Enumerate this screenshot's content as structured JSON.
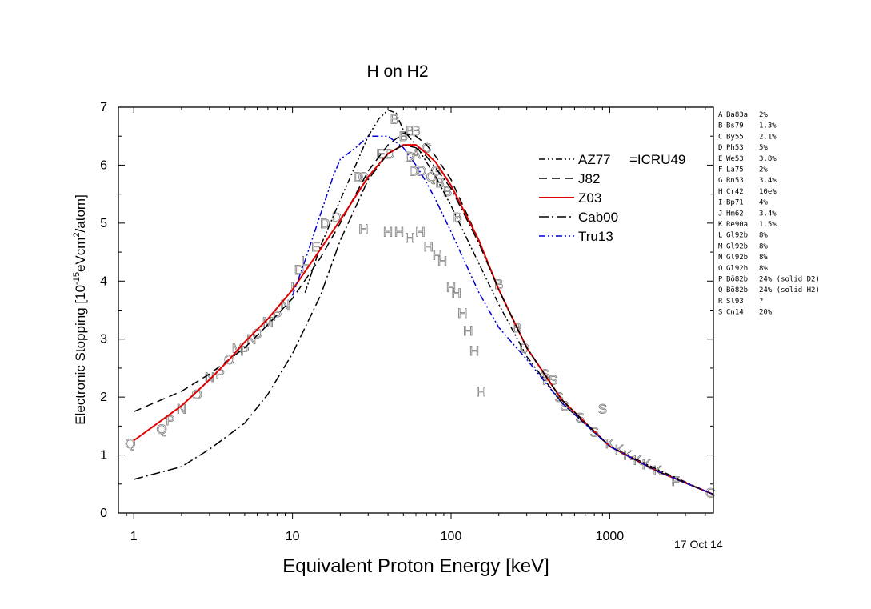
{
  "chart_data": {
    "type": "line",
    "title": "H on H2",
    "xlabel": "Equivalent Proton Energy [keV]",
    "ylabel_main": "Electronic Stopping [10",
    "ylabel_exp1": "-15",
    "ylabel_mid": "eVcm",
    "ylabel_exp2": "2",
    "ylabel_end": "/atom]",
    "xscale": "log",
    "xlim": [
      0.8,
      4500
    ],
    "ylim": [
      0,
      7
    ],
    "x_ticks": [
      1,
      10,
      100,
      1000
    ],
    "x_tick_labels": [
      "1",
      "10",
      "100",
      "1000"
    ],
    "y_ticks": [
      0,
      1,
      2,
      3,
      4,
      5,
      6,
      7
    ],
    "y_tick_labels": [
      "0",
      "1",
      "2",
      "3",
      "4",
      "5",
      "6",
      "7"
    ],
    "date_label": "17 Oct 14",
    "legend_note": "=ICRU49",
    "legend_placement": "top-right inside",
    "series": [
      {
        "name": "AZ77",
        "color": "#000000",
        "dash": "8,3,2,3,2,3",
        "x": [
          12,
          15,
          20,
          25,
          30,
          35,
          40,
          45,
          50,
          60,
          70,
          80,
          100,
          150,
          200,
          300,
          500,
          1000,
          2000,
          4500
        ],
        "y": [
          3.8,
          4.6,
          5.4,
          6.0,
          6.5,
          6.8,
          6.95,
          6.9,
          6.6,
          6.35,
          6.05,
          5.8,
          5.3,
          4.3,
          3.6,
          2.7,
          1.9,
          1.15,
          0.75,
          0.32
        ]
      },
      {
        "name": "J82",
        "color": "#000000",
        "dash": "10,6",
        "x": [
          1,
          2,
          3,
          5,
          7,
          10,
          15,
          20,
          30,
          40,
          50,
          60,
          70,
          80,
          100,
          150,
          200,
          300,
          500,
          1000,
          2000,
          4500
        ],
        "y": [
          1.75,
          2.1,
          2.4,
          2.85,
          3.25,
          3.7,
          4.4,
          5.0,
          5.9,
          6.35,
          6.55,
          6.5,
          6.35,
          6.15,
          5.75,
          4.7,
          3.85,
          2.85,
          1.95,
          1.15,
          0.72,
          0.32
        ]
      },
      {
        "name": "Z03",
        "color": "#e00000",
        "dash": "",
        "x": [
          1,
          1.5,
          2,
          3,
          4,
          5,
          7,
          10,
          15,
          20,
          30,
          40,
          50,
          60,
          70,
          80,
          100,
          150,
          200,
          300,
          500,
          1000,
          2000,
          4500
        ],
        "y": [
          1.25,
          1.6,
          1.85,
          2.3,
          2.65,
          2.95,
          3.35,
          3.85,
          4.55,
          5.05,
          5.8,
          6.2,
          6.35,
          6.35,
          6.2,
          6.05,
          5.65,
          4.7,
          3.85,
          2.85,
          1.95,
          1.15,
          0.72,
          0.32
        ]
      },
      {
        "name": "Cab00",
        "color": "#000000",
        "dash": "12,4,2,4",
        "x": [
          1,
          2,
          3,
          5,
          7,
          10,
          15,
          20,
          30,
          40,
          50,
          60,
          70,
          80,
          100,
          150,
          200,
          300,
          500,
          1000,
          2000,
          4500
        ],
        "y": [
          0.58,
          0.8,
          1.1,
          1.55,
          2.05,
          2.75,
          3.75,
          4.7,
          5.75,
          6.2,
          6.35,
          6.3,
          6.15,
          5.95,
          5.6,
          4.65,
          3.85,
          2.85,
          1.95,
          1.15,
          0.72,
          0.32
        ]
      },
      {
        "name": "Tru13",
        "color": "#0000d0",
        "dash": "8,3,2,3,2,3",
        "x": [
          10,
          12,
          15,
          18,
          20,
          25,
          30,
          40,
          50,
          60,
          70,
          80,
          100,
          150,
          200,
          300,
          500,
          1000,
          2000,
          4500
        ],
        "y": [
          3.75,
          4.35,
          5.15,
          5.8,
          6.1,
          6.3,
          6.5,
          6.5,
          6.3,
          6.0,
          5.7,
          5.4,
          4.85,
          3.8,
          3.2,
          2.65,
          1.9,
          1.15,
          0.72,
          0.32
        ]
      }
    ],
    "reference_list": [
      {
        "letter": "A",
        "ref": "Ba83a",
        "err": "2%"
      },
      {
        "letter": "B",
        "ref": "Bs79",
        "err": "1.3%"
      },
      {
        "letter": "C",
        "ref": "By55",
        "err": "2.1%"
      },
      {
        "letter": "D",
        "ref": "Ph53",
        "err": "5%"
      },
      {
        "letter": "E",
        "ref": "We53",
        "err": "3.8%"
      },
      {
        "letter": "F",
        "ref": "La75",
        "err": "2%"
      },
      {
        "letter": "G",
        "ref": "Rn53",
        "err": "3.4%"
      },
      {
        "letter": "H",
        "ref": "Cr42",
        "err": "10e%"
      },
      {
        "letter": "I",
        "ref": "Bp71",
        "err": "4%"
      },
      {
        "letter": "J",
        "ref": "Hm62",
        "err": "3.4%"
      },
      {
        "letter": "K",
        "ref": "Re90a",
        "err": "1.5%"
      },
      {
        "letter": "L",
        "ref": "Gl92b",
        "err": "8%"
      },
      {
        "letter": "M",
        "ref": "Gl92b",
        "err": "8%"
      },
      {
        "letter": "N",
        "ref": "Gl92b",
        "err": "8%"
      },
      {
        "letter": "O",
        "ref": "Gl92b",
        "err": "8%"
      },
      {
        "letter": "P",
        "ref": "Bö82b",
        "err": "24% (solid D2)"
      },
      {
        "letter": "Q",
        "ref": "Bö82b",
        "err": "24% (solid H2)"
      },
      {
        "letter": "R",
        "ref": "Sl93",
        "err": "?"
      },
      {
        "letter": "S",
        "ref": "Cn14",
        "err": "20%"
      }
    ],
    "data_points": [
      {
        "m": "Q",
        "x": 0.95,
        "y": 1.2
      },
      {
        "m": "Q",
        "x": 1.5,
        "y": 1.45
      },
      {
        "m": "P",
        "x": 1.7,
        "y": 1.6
      },
      {
        "m": "N",
        "x": 2.0,
        "y": 1.8
      },
      {
        "m": "O",
        "x": 2.5,
        "y": 2.05
      },
      {
        "m": "N",
        "x": 3.0,
        "y": 2.35
      },
      {
        "m": "P",
        "x": 3.5,
        "y": 2.4
      },
      {
        "m": "O",
        "x": 4.0,
        "y": 2.65
      },
      {
        "m": "M",
        "x": 4.5,
        "y": 2.85
      },
      {
        "m": "P",
        "x": 5.0,
        "y": 2.8
      },
      {
        "m": "N",
        "x": 5.5,
        "y": 3.0
      },
      {
        "m": "O",
        "x": 6.0,
        "y": 3.1
      },
      {
        "m": "M",
        "x": 7.0,
        "y": 3.3
      },
      {
        "m": "P",
        "x": 8.0,
        "y": 3.4
      },
      {
        "m": "N",
        "x": 9.0,
        "y": 3.6
      },
      {
        "m": "I",
        "x": 10.0,
        "y": 3.9
      },
      {
        "m": "D",
        "x": 11.0,
        "y": 4.2
      },
      {
        "m": "L",
        "x": 12.0,
        "y": 4.35
      },
      {
        "m": "E",
        "x": 14.0,
        "y": 4.6
      },
      {
        "m": "D",
        "x": 16.0,
        "y": 5.0
      },
      {
        "m": "D",
        "x": 19.0,
        "y": 5.1
      },
      {
        "m": "D",
        "x": 26.0,
        "y": 5.8
      },
      {
        "m": "O",
        "x": 28.0,
        "y": 5.8
      },
      {
        "m": "H",
        "x": 28.0,
        "y": 4.9
      },
      {
        "m": "E",
        "x": 36.0,
        "y": 6.2
      },
      {
        "m": "D",
        "x": 41.0,
        "y": 6.2
      },
      {
        "m": "B",
        "x": 44.0,
        "y": 6.8
      },
      {
        "m": "H",
        "x": 40.0,
        "y": 4.85
      },
      {
        "m": "H",
        "x": 47.0,
        "y": 4.85
      },
      {
        "m": "H",
        "x": 55.0,
        "y": 4.75
      },
      {
        "m": "B",
        "x": 50.0,
        "y": 6.5
      },
      {
        "m": "B",
        "x": 55.0,
        "y": 6.6
      },
      {
        "m": "B",
        "x": 60.0,
        "y": 6.6
      },
      {
        "m": "D",
        "x": 55.0,
        "y": 6.15
      },
      {
        "m": "A",
        "x": 60.0,
        "y": 6.2
      },
      {
        "m": "H",
        "x": 64.0,
        "y": 4.85
      },
      {
        "m": "C",
        "x": 70.0,
        "y": 6.3
      },
      {
        "m": "D",
        "x": 58.0,
        "y": 5.9
      },
      {
        "m": "D",
        "x": 65.0,
        "y": 5.9
      },
      {
        "m": "H",
        "x": 72.0,
        "y": 4.6
      },
      {
        "m": "Q",
        "x": 75.0,
        "y": 5.8
      },
      {
        "m": "G",
        "x": 80.0,
        "y": 5.9
      },
      {
        "m": "H",
        "x": 82.0,
        "y": 4.45
      },
      {
        "m": "B",
        "x": 85.0,
        "y": 5.7
      },
      {
        "m": "H",
        "x": 88.0,
        "y": 4.35
      },
      {
        "m": "B",
        "x": 95.0,
        "y": 5.55
      },
      {
        "m": "B",
        "x": 110.0,
        "y": 5.1
      },
      {
        "m": "H",
        "x": 100.0,
        "y": 3.9
      },
      {
        "m": "H",
        "x": 108.0,
        "y": 3.8
      },
      {
        "m": "H",
        "x": 118.0,
        "y": 3.45
      },
      {
        "m": "H",
        "x": 128.0,
        "y": 3.15
      },
      {
        "m": "H",
        "x": 140.0,
        "y": 2.8
      },
      {
        "m": "H",
        "x": 155.0,
        "y": 2.1
      },
      {
        "m": "B",
        "x": 200.0,
        "y": 3.95
      },
      {
        "m": "B",
        "x": 260.0,
        "y": 3.2
      },
      {
        "m": "D",
        "x": 290.0,
        "y": 2.85
      },
      {
        "m": "F",
        "x": 400.0,
        "y": 2.3
      },
      {
        "m": "S",
        "x": 390.0,
        "y": 2.4
      },
      {
        "m": "S",
        "x": 440.0,
        "y": 2.3
      },
      {
        "m": "S",
        "x": 480.0,
        "y": 2.0
      },
      {
        "m": "S",
        "x": 520.0,
        "y": 1.85
      },
      {
        "m": "S",
        "x": 650.0,
        "y": 1.65
      },
      {
        "m": "S",
        "x": 900.0,
        "y": 1.8
      },
      {
        "m": "S",
        "x": 800.0,
        "y": 1.4
      },
      {
        "m": "K",
        "x": 1000.0,
        "y": 1.2
      },
      {
        "m": "K",
        "x": 1150.0,
        "y": 1.1
      },
      {
        "m": "K",
        "x": 1300.0,
        "y": 1.0
      },
      {
        "m": "K",
        "x": 1500.0,
        "y": 0.92
      },
      {
        "m": "K",
        "x": 1700.0,
        "y": 0.84
      },
      {
        "m": "K",
        "x": 2000.0,
        "y": 0.74
      },
      {
        "m": "F",
        "x": 2600.0,
        "y": 0.55
      },
      {
        "m": "C",
        "x": 4300.0,
        "y": 0.35
      }
    ]
  }
}
